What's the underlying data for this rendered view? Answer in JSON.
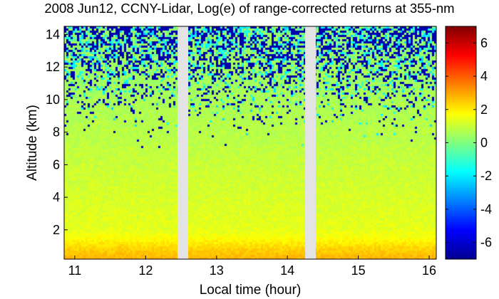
{
  "title": "2008 Jun12, CCNY-Lidar, Log(e) of range-corrected returns at 355-nm",
  "colors": {
    "background": "#ffffff",
    "gap": "#e3e3e3",
    "colormap": [
      "#00008f",
      "#0000ff",
      "#0080ff",
      "#00ffff",
      "#80ff80",
      "#ffff00",
      "#ff8000",
      "#ff0000",
      "#800000"
    ]
  },
  "chart_data": {
    "type": "heatmap",
    "title": "2008 Jun12, CCNY-Lidar, Log(e) of range-corrected returns at 355-nm",
    "xlabel": "Local time (hour)",
    "ylabel": "Altitude (km)",
    "xlim": [
      10.85,
      16.1
    ],
    "ylim": [
      0.2,
      14.5
    ],
    "x_ticks": [
      11,
      12,
      13,
      14,
      15,
      16
    ],
    "y_ticks": [
      2,
      4,
      6,
      8,
      10,
      12,
      14
    ],
    "data_gaps": [
      [
        12.45,
        12.6
      ],
      [
        14.25,
        14.4
      ]
    ],
    "colorbar": {
      "range": [
        -7,
        7
      ],
      "ticks": [
        -6,
        -4,
        -2,
        0,
        2,
        4,
        6
      ],
      "colormap": "jet"
    },
    "profile": {
      "altitude_km": [
        0.2,
        0.5,
        0.9,
        1.5,
        2.0,
        3.0,
        4.0,
        5.0,
        6.0,
        7.0,
        7.5,
        8.0,
        9.0,
        10.0,
        11.0,
        12.0,
        13.0,
        14.0,
        14.5
      ],
      "log_return": [
        2.8,
        2.6,
        2.3,
        1.7,
        1.4,
        1.3,
        1.2,
        1.1,
        1.0,
        0.9,
        0.8,
        0.8,
        0.7,
        0.6,
        0.5,
        0.5,
        0.4,
        0.4,
        0.4
      ],
      "noise_fraction": [
        0,
        0,
        0,
        0,
        0,
        0,
        0,
        0,
        0,
        0,
        0.005,
        0.02,
        0.06,
        0.12,
        0.2,
        0.3,
        0.38,
        0.45,
        0.5
      ],
      "noise_value": -6.5
    },
    "grid": false
  }
}
